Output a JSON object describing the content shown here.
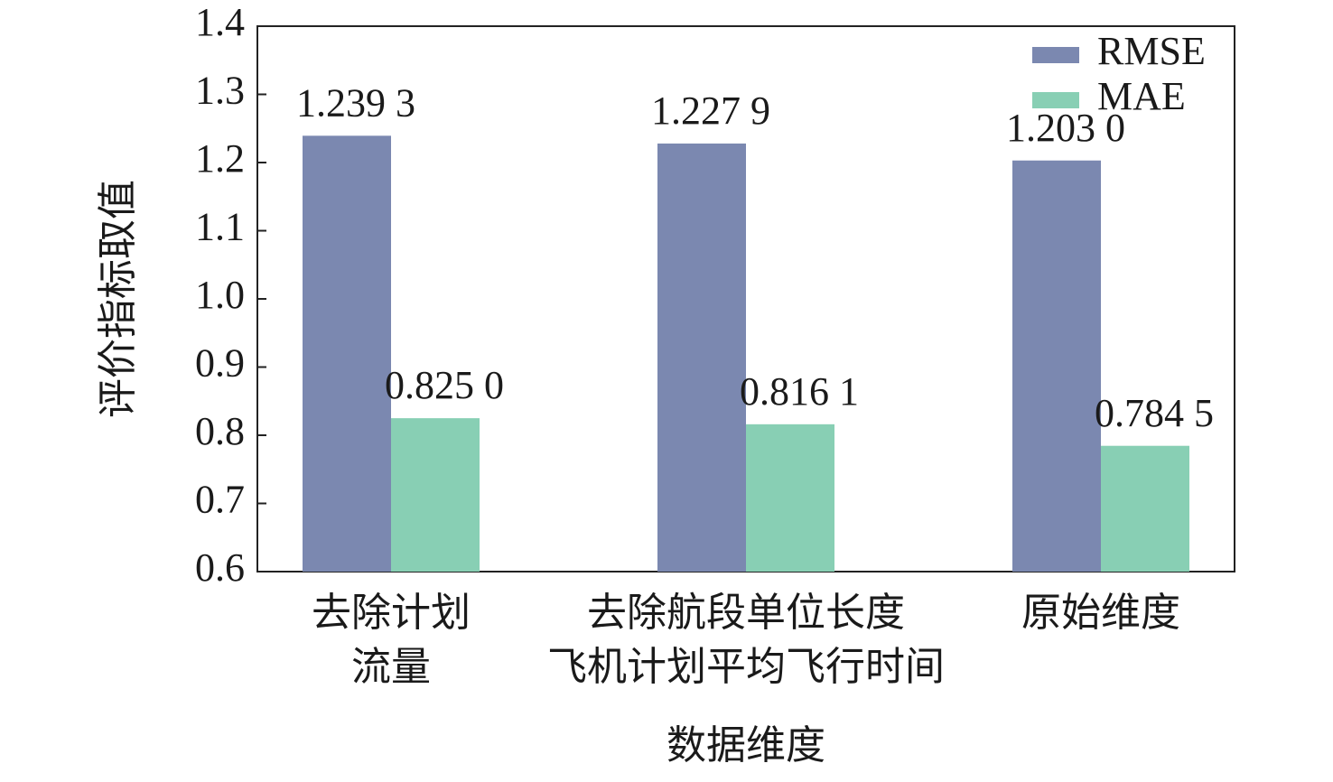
{
  "chart_data": {
    "type": "bar",
    "x_label": "数据维度",
    "y_label": "评价指标取值",
    "categories": [
      [
        "去除计划",
        "流量"
      ],
      [
        "去除航段单位长度",
        "飞机计划平均飞行时间"
      ],
      [
        "原始维度"
      ]
    ],
    "series": [
      {
        "name": "RMSE",
        "color": "#7b88b0",
        "values": [
          1.2393,
          1.2279,
          1.203
        ],
        "value_labels": [
          "1.239 3",
          "1.227 9",
          "1.203 0"
        ]
      },
      {
        "name": "MAE",
        "color": "#88cfb4",
        "values": [
          0.825,
          0.8161,
          0.7845
        ],
        "value_labels": [
          "0.825 0",
          "0.816 1",
          "0.784 5"
        ]
      }
    ],
    "ylim": [
      0.6,
      1.4
    ],
    "yticks": [
      0.6,
      0.7,
      0.8,
      0.9,
      {
        "value": 1.0,
        "label": "1.0"
      },
      1.1,
      1.2,
      1.3,
      1.4
    ],
    "legend": "top-right"
  }
}
